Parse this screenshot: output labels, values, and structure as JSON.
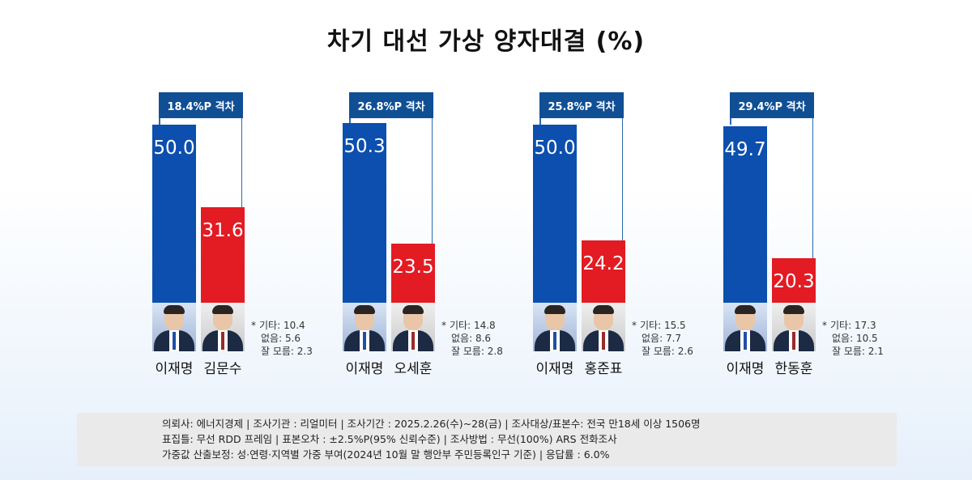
{
  "title": "차기 대선 가상 양자대결 (%)",
  "chart_data": [
    {
      "type": "bar",
      "categories": [
        "이재명",
        "김문수"
      ],
      "values": [
        50.0,
        31.6
      ],
      "gap_label": "18.4%P 격차",
      "others": {
        "기타": 10.4,
        "없음": 5.6,
        "잘 모름": 2.3
      }
    },
    {
      "type": "bar",
      "categories": [
        "이재명",
        "오세훈"
      ],
      "values": [
        50.3,
        23.5
      ],
      "gap_label": "26.8%P 격차",
      "others": {
        "기타": 14.8,
        "없음": 8.6,
        "잘 모름": 2.8
      }
    },
    {
      "type": "bar",
      "categories": [
        "이재명",
        "홍준표"
      ],
      "values": [
        50.0,
        24.2
      ],
      "gap_label": "25.8%P 격차",
      "others": {
        "기타": 15.5,
        "없음": 7.7,
        "잘 모름": 2.6
      }
    },
    {
      "type": "bar",
      "categories": [
        "이재명",
        "한동훈"
      ],
      "values": [
        49.7,
        20.3
      ],
      "gap_label": "29.4%P 격차",
      "others": {
        "기타": 17.3,
        "없음": 10.5,
        "잘 모름": 2.1
      }
    }
  ],
  "groups": [
    {
      "name_a": "이재명",
      "name_b": "김문수",
      "val_a": "50.0",
      "val_b": "31.6",
      "gap": "18.4%P 격차",
      "star": "*",
      "o1": "기타: 10.4",
      "o2": "없음: 5.6",
      "o3": "잘 모름: 2.3"
    },
    {
      "name_a": "이재명",
      "name_b": "오세훈",
      "val_a": "50.3",
      "val_b": "23.5",
      "gap": "26.8%P 격차",
      "star": "*",
      "o1": "기타: 14.8",
      "o2": "없음: 8.6",
      "o3": "잘 모름: 2.8"
    },
    {
      "name_a": "이재명",
      "name_b": "홍준표",
      "val_a": "50.0",
      "val_b": "24.2",
      "gap": "25.8%P 격차",
      "star": "*",
      "o1": "기타: 15.5",
      "o2": "없음: 7.7",
      "o3": "잘 모름: 2.6"
    },
    {
      "name_a": "이재명",
      "name_b": "한동훈",
      "val_a": "49.7",
      "val_b": "20.3",
      "gap": "29.4%P 격차",
      "star": "*",
      "o1": "기타: 17.3",
      "o2": "없음: 10.5",
      "o3": "잘 모름: 2.1"
    }
  ],
  "colors": {
    "candidate_a": "#0c4fae",
    "candidate_b": "#e31b23",
    "gap_box": "#104f94"
  },
  "notes": [
    "의뢰사: 에너지경제 | 조사기관 : 리얼미터 | 조사기간 : 2025.2.26(수)~28(금) | 조사대상/표본수: 전국 만18세 이상 1506명",
    "표집틀: 무선 RDD 프레임 | 표본오차 : ±2.5%P(95% 신뢰수준) | 조사방법 : 무선(100%) ARS 전화조사",
    "가중값 산출보정: 성·연령·지역별 가중 부여(2024년 10월 말 행안부 주민등록인구 기준) | 응답률 : 6.0%"
  ]
}
